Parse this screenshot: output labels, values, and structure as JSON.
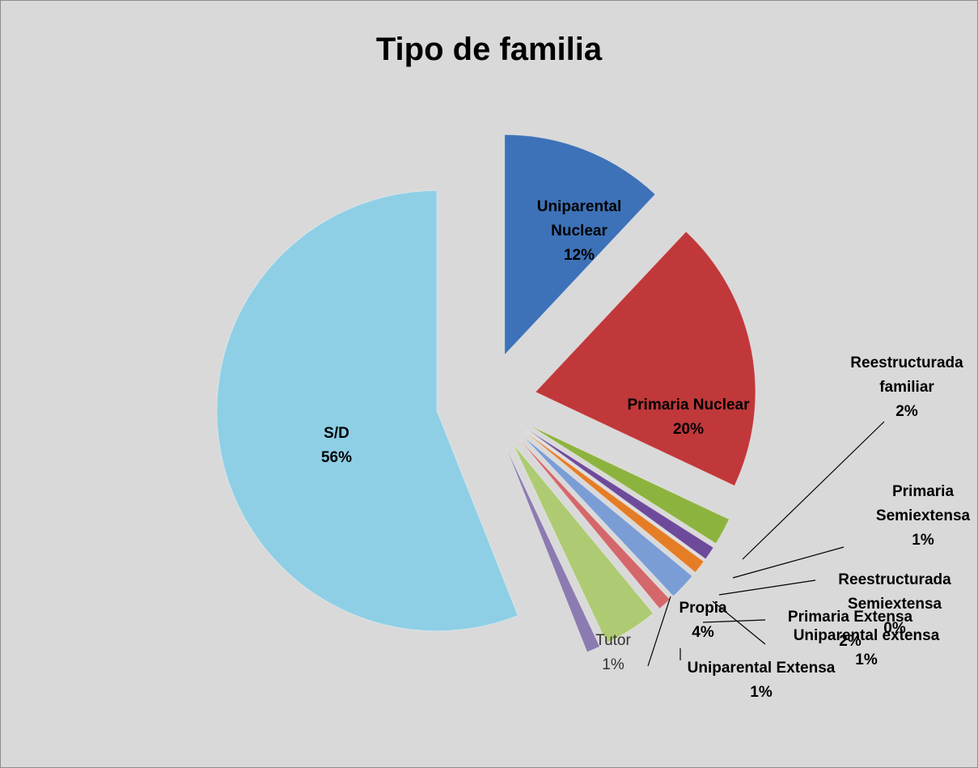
{
  "chart_data": {
    "type": "pie",
    "title": "Tipo de familia",
    "categories": [
      "Uniparental Nuclear",
      "Primaria Nuclear",
      "Reestructurada familiar",
      "Primaria Semiextensa",
      "Reestructurada Semiextensa",
      "Uniparental extensa",
      "Primaria Extensa",
      "Uniparental Extensa",
      "Propia",
      "Tutor",
      "S/D"
    ],
    "values": [
      12,
      20,
      2,
      1,
      0,
      1,
      2,
      1,
      4,
      1,
      56
    ],
    "value_labels": [
      "12%",
      "20%",
      "2%",
      "1%",
      "0%",
      "1%",
      "2%",
      "1%",
      "4%",
      "1%",
      "56%"
    ],
    "colors": [
      "#3d72b8",
      "#c0383a",
      "#8db33f",
      "#6e4a9a",
      "#2f9bb5",
      "#e57d27",
      "#7b9dd6",
      "#d4676a",
      "#aecb74",
      "#8c7bb0",
      "#8ecfe6"
    ]
  }
}
